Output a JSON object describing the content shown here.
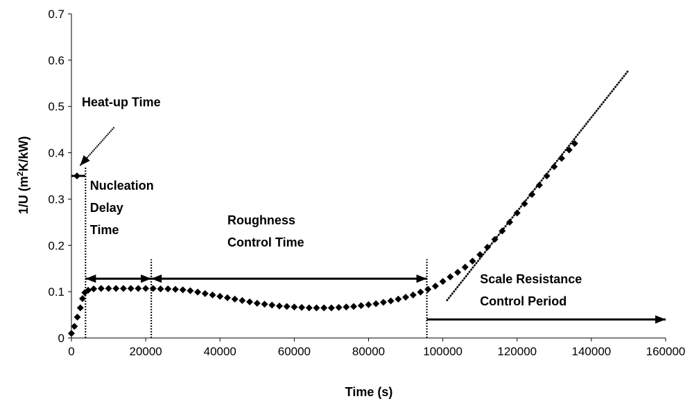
{
  "chart_data": {
    "type": "scatter",
    "title": "",
    "xlabel": "Time (s)",
    "ylabel_prefix": "1/U (m",
    "ylabel_sup": "2",
    "ylabel_suffix": "K/kW)",
    "xlim": [
      0,
      160000
    ],
    "ylim": [
      0,
      0.7
    ],
    "xticks": [
      0,
      20000,
      40000,
      60000,
      80000,
      100000,
      120000,
      140000,
      160000
    ],
    "yticks": [
      0,
      0.1,
      0.2,
      0.3,
      0.4,
      0.5,
      0.6,
      0.7
    ],
    "grid": false,
    "legend": "none",
    "marker": "diamond",
    "marker_color": "#000000",
    "series": [
      {
        "name": "",
        "points": [
          [
            0,
            0.01
          ],
          [
            800,
            0.025
          ],
          [
            1600,
            0.045
          ],
          [
            2400,
            0.065
          ],
          [
            3000,
            0.085
          ],
          [
            3600,
            0.098
          ],
          [
            4500,
            0.103
          ],
          [
            6000,
            0.106
          ],
          [
            8000,
            0.107
          ],
          [
            10000,
            0.107
          ],
          [
            12000,
            0.107
          ],
          [
            14000,
            0.107
          ],
          [
            16000,
            0.107
          ],
          [
            18000,
            0.107
          ],
          [
            20000,
            0.107
          ],
          [
            22000,
            0.107
          ],
          [
            24000,
            0.106
          ],
          [
            26000,
            0.106
          ],
          [
            28000,
            0.105
          ],
          [
            30000,
            0.104
          ],
          [
            32000,
            0.102
          ],
          [
            34000,
            0.099
          ],
          [
            36000,
            0.096
          ],
          [
            38000,
            0.093
          ],
          [
            40000,
            0.09
          ],
          [
            42000,
            0.087
          ],
          [
            44000,
            0.084
          ],
          [
            46000,
            0.081
          ],
          [
            48000,
            0.078
          ],
          [
            50000,
            0.075
          ],
          [
            52000,
            0.073
          ],
          [
            54000,
            0.071
          ],
          [
            56000,
            0.069
          ],
          [
            58000,
            0.068
          ],
          [
            60000,
            0.067
          ],
          [
            62000,
            0.066
          ],
          [
            64000,
            0.065
          ],
          [
            66000,
            0.065
          ],
          [
            68000,
            0.065
          ],
          [
            70000,
            0.065
          ],
          [
            72000,
            0.066
          ],
          [
            74000,
            0.067
          ],
          [
            76000,
            0.068
          ],
          [
            78000,
            0.07
          ],
          [
            80000,
            0.072
          ],
          [
            82000,
            0.074
          ],
          [
            84000,
            0.077
          ],
          [
            86000,
            0.08
          ],
          [
            88000,
            0.084
          ],
          [
            90000,
            0.088
          ],
          [
            92000,
            0.093
          ],
          [
            94000,
            0.099
          ],
          [
            96000,
            0.105
          ],
          [
            98000,
            0.112
          ],
          [
            100000,
            0.122
          ],
          [
            102000,
            0.132
          ],
          [
            104000,
            0.142
          ],
          [
            106000,
            0.153
          ],
          [
            108000,
            0.166
          ],
          [
            110000,
            0.18
          ],
          [
            112000,
            0.196
          ],
          [
            114000,
            0.213
          ],
          [
            116000,
            0.231
          ],
          [
            118000,
            0.25
          ],
          [
            120000,
            0.27
          ],
          [
            122000,
            0.29
          ],
          [
            124000,
            0.31
          ],
          [
            126000,
            0.33
          ],
          [
            128000,
            0.35
          ],
          [
            130000,
            0.37
          ],
          [
            132000,
            0.388
          ],
          [
            134000,
            0.406
          ],
          [
            135500,
            0.42
          ]
        ]
      }
    ],
    "trend_line": {
      "x": [
        101000,
        150000
      ],
      "y": [
        0.08,
        0.578
      ]
    },
    "markers": {
      "heatup_point": {
        "x": 1500,
        "y": 0.35
      },
      "vlines": [
        {
          "x": 3800,
          "y_top": 0.37
        },
        {
          "x": 21500,
          "y_top": 0.17
        },
        {
          "x": 95700,
          "y_top": 0.17
        }
      ],
      "arrows": [
        {
          "x1": 3800,
          "y1": 0.128,
          "x2": 21500,
          "y2": 0.128,
          "double": true
        },
        {
          "x1": 21500,
          "y1": 0.128,
          "x2": 95700,
          "y2": 0.128,
          "double": true
        },
        {
          "x1": 95700,
          "y1": 0.04,
          "x2": 160000,
          "y2": 0.04,
          "double": false
        }
      ],
      "pointer": {
        "x1": 11500,
        "y1": 0.455,
        "x2": 2300,
        "y2": 0.372
      }
    },
    "annotations": [
      {
        "id": "heatup",
        "lines": [
          "Heat-up Time"
        ],
        "x": 2800,
        "y": 0.5
      },
      {
        "id": "nucleation",
        "lines": [
          "Nucleation",
          "Delay",
          "Time"
        ],
        "x": 5000,
        "y": 0.32
      },
      {
        "id": "roughness",
        "lines": [
          "Roughness",
          "Control Time"
        ],
        "x": 42000,
        "y": 0.245
      },
      {
        "id": "scale",
        "lines": [
          "Scale Resistance",
          "Control Period"
        ],
        "x": 110000,
        "y": 0.118
      }
    ]
  }
}
